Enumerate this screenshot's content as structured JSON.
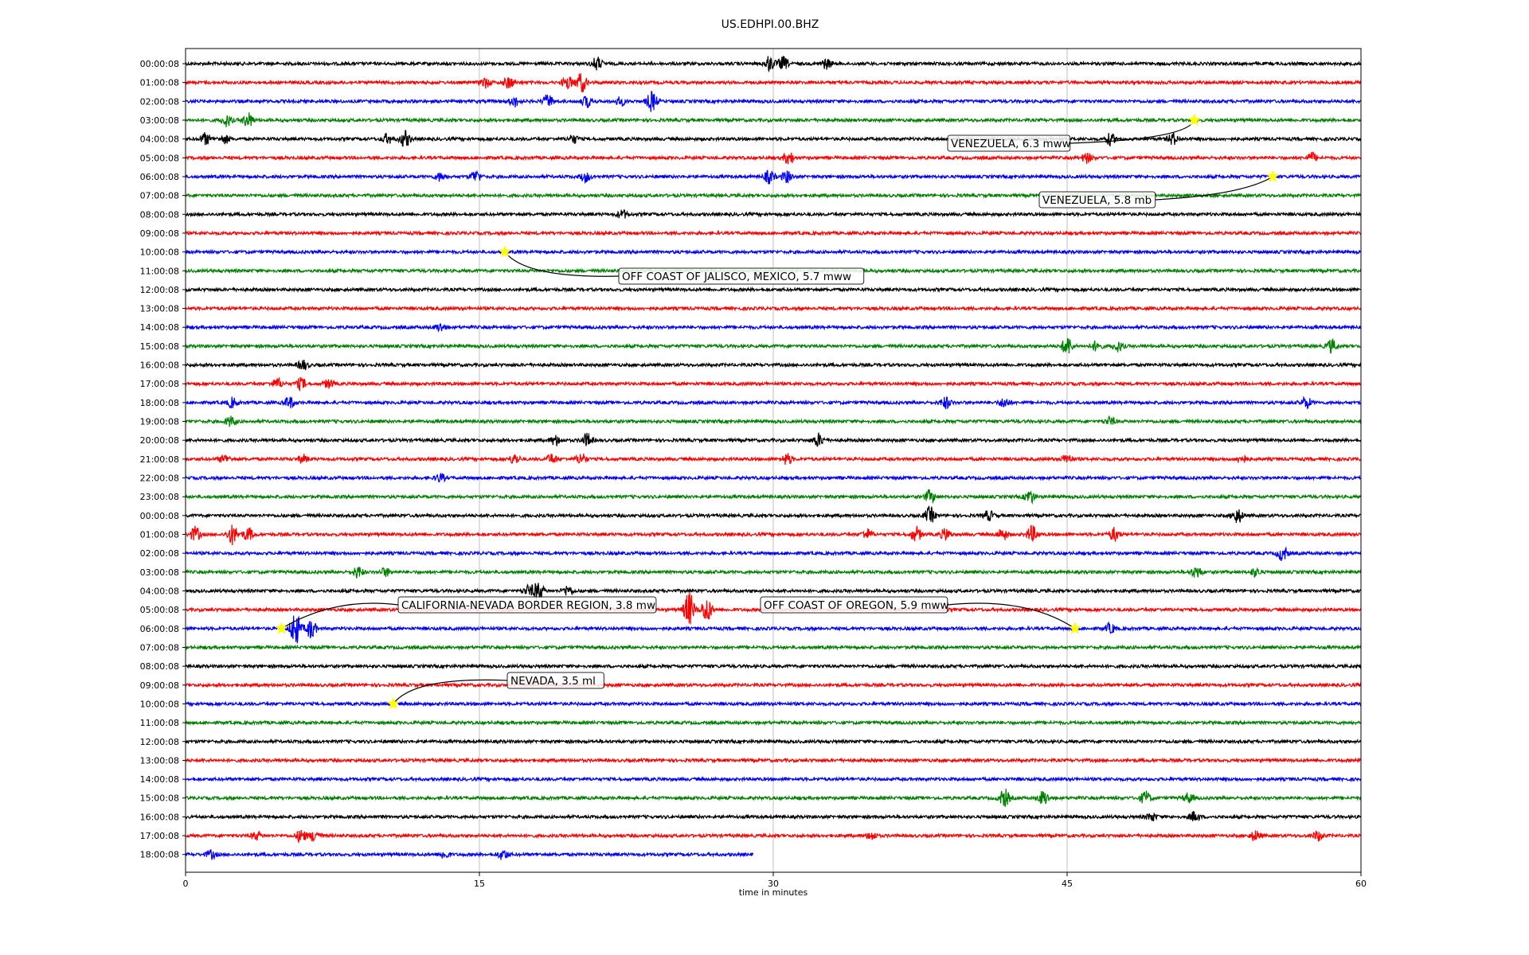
{
  "chart_data": {
    "type": "line",
    "title": "US.EDHPI.00.BHZ",
    "xlabel": "time in minutes",
    "ylabel": "",
    "xlim": [
      0,
      60
    ],
    "xticks": [
      "0",
      "15",
      "30",
      "45",
      "60"
    ],
    "grid": "vertical gridlines at each x tick",
    "trace_colors": [
      "#000000",
      "#ff0000",
      "#0000ff",
      "#008000"
    ],
    "row_labels": [
      "00:00:08",
      "01:00:08",
      "02:00:08",
      "03:00:08",
      "04:00:08",
      "05:00:08",
      "06:00:08",
      "07:00:08",
      "08:00:08",
      "09:00:08",
      "10:00:08",
      "11:00:08",
      "12:00:08",
      "13:00:08",
      "14:00:08",
      "15:00:08",
      "16:00:08",
      "17:00:08",
      "18:00:08",
      "19:00:08",
      "20:00:08",
      "21:00:08",
      "22:00:08",
      "23:00:08",
      "00:00:08",
      "01:00:08",
      "02:00:08",
      "03:00:08",
      "04:00:08",
      "05:00:08",
      "06:00:08",
      "07:00:08",
      "08:00:08",
      "09:00:08",
      "10:00:08",
      "11:00:08",
      "12:00:08",
      "13:00:08",
      "14:00:08",
      "15:00:08",
      "16:00:08",
      "17:00:08",
      "18:00:08"
    ],
    "last_row_end_minute": 29,
    "bursts": [
      {
        "row": 0,
        "minute": 21.0,
        "amp": 8
      },
      {
        "row": 0,
        "minute": 29.8,
        "amp": 9
      },
      {
        "row": 0,
        "minute": 30.5,
        "amp": 8
      },
      {
        "row": 0,
        "minute": 32.7,
        "amp": 6
      },
      {
        "row": 1,
        "minute": 15.3,
        "amp": 6
      },
      {
        "row": 1,
        "minute": 16.5,
        "amp": 7
      },
      {
        "row": 1,
        "minute": 19.5,
        "amp": 8
      },
      {
        "row": 1,
        "minute": 20.2,
        "amp": 12
      },
      {
        "row": 2,
        "minute": 16.8,
        "amp": 6
      },
      {
        "row": 2,
        "minute": 18.5,
        "amp": 8
      },
      {
        "row": 2,
        "minute": 20.5,
        "amp": 7
      },
      {
        "row": 2,
        "minute": 22.2,
        "amp": 5
      },
      {
        "row": 2,
        "minute": 23.8,
        "amp": 12
      },
      {
        "row": 3,
        "minute": 2.1,
        "amp": 7
      },
      {
        "row": 3,
        "minute": 3.2,
        "amp": 9
      },
      {
        "row": 4,
        "minute": 1.0,
        "amp": 7
      },
      {
        "row": 4,
        "minute": 2.0,
        "amp": 5
      },
      {
        "row": 4,
        "minute": 10.3,
        "amp": 6
      },
      {
        "row": 4,
        "minute": 11.2,
        "amp": 10
      },
      {
        "row": 4,
        "minute": 19.8,
        "amp": 5
      },
      {
        "row": 4,
        "minute": 47.2,
        "amp": 7
      },
      {
        "row": 4,
        "minute": 50.4,
        "amp": 7
      },
      {
        "row": 5,
        "minute": 30.8,
        "amp": 8
      },
      {
        "row": 5,
        "minute": 46.0,
        "amp": 6
      },
      {
        "row": 5,
        "minute": 57.5,
        "amp": 6
      },
      {
        "row": 6,
        "minute": 13.0,
        "amp": 5
      },
      {
        "row": 6,
        "minute": 14.8,
        "amp": 7
      },
      {
        "row": 6,
        "minute": 20.4,
        "amp": 6
      },
      {
        "row": 6,
        "minute": 29.8,
        "amp": 8
      },
      {
        "row": 6,
        "minute": 30.7,
        "amp": 7
      },
      {
        "row": 8,
        "minute": 22.3,
        "amp": 5
      },
      {
        "row": 14,
        "minute": 13.0,
        "amp": 5
      },
      {
        "row": 15,
        "minute": 45.0,
        "amp": 12
      },
      {
        "row": 15,
        "minute": 46.5,
        "amp": 6
      },
      {
        "row": 15,
        "minute": 47.6,
        "amp": 6
      },
      {
        "row": 15,
        "minute": 58.5,
        "amp": 8
      },
      {
        "row": 16,
        "minute": 6.0,
        "amp": 6
      },
      {
        "row": 17,
        "minute": 4.7,
        "amp": 6
      },
      {
        "row": 17,
        "minute": 5.9,
        "amp": 7
      },
      {
        "row": 17,
        "minute": 7.3,
        "amp": 5
      },
      {
        "row": 18,
        "minute": 2.4,
        "amp": 6
      },
      {
        "row": 18,
        "minute": 5.3,
        "amp": 7
      },
      {
        "row": 18,
        "minute": 38.8,
        "amp": 7
      },
      {
        "row": 18,
        "minute": 41.8,
        "amp": 6
      },
      {
        "row": 18,
        "minute": 57.2,
        "amp": 7
      },
      {
        "row": 19,
        "minute": 2.3,
        "amp": 6
      },
      {
        "row": 19,
        "minute": 47.2,
        "amp": 5
      },
      {
        "row": 20,
        "minute": 18.9,
        "amp": 6
      },
      {
        "row": 20,
        "minute": 20.5,
        "amp": 8
      },
      {
        "row": 20,
        "minute": 32.3,
        "amp": 8
      },
      {
        "row": 21,
        "minute": 2.0,
        "amp": 5
      },
      {
        "row": 21,
        "minute": 6.0,
        "amp": 5
      },
      {
        "row": 21,
        "minute": 16.8,
        "amp": 6
      },
      {
        "row": 21,
        "minute": 18.7,
        "amp": 6
      },
      {
        "row": 21,
        "minute": 20.2,
        "amp": 7
      },
      {
        "row": 21,
        "minute": 30.7,
        "amp": 7
      },
      {
        "row": 21,
        "minute": 45.0,
        "amp": 6
      },
      {
        "row": 21,
        "minute": 53.9,
        "amp": 5
      },
      {
        "row": 22,
        "minute": 13.0,
        "amp": 5
      },
      {
        "row": 23,
        "minute": 38.0,
        "amp": 8
      },
      {
        "row": 23,
        "minute": 43.1,
        "amp": 8
      },
      {
        "row": 24,
        "minute": 38.0,
        "amp": 10
      },
      {
        "row": 24,
        "minute": 41.0,
        "amp": 6
      },
      {
        "row": 24,
        "minute": 53.7,
        "amp": 9
      },
      {
        "row": 25,
        "minute": 0.5,
        "amp": 9
      },
      {
        "row": 25,
        "minute": 2.4,
        "amp": 12
      },
      {
        "row": 25,
        "minute": 3.2,
        "amp": 8
      },
      {
        "row": 25,
        "minute": 34.8,
        "amp": 6
      },
      {
        "row": 25,
        "minute": 37.3,
        "amp": 9
      },
      {
        "row": 25,
        "minute": 38.8,
        "amp": 7
      },
      {
        "row": 25,
        "minute": 41.7,
        "amp": 7
      },
      {
        "row": 25,
        "minute": 43.2,
        "amp": 10
      },
      {
        "row": 25,
        "minute": 47.4,
        "amp": 8
      },
      {
        "row": 26,
        "minute": 56.0,
        "amp": 9
      },
      {
        "row": 27,
        "minute": 8.8,
        "amp": 7
      },
      {
        "row": 27,
        "minute": 10.2,
        "amp": 5
      },
      {
        "row": 27,
        "minute": 51.6,
        "amp": 7
      },
      {
        "row": 27,
        "minute": 54.6,
        "amp": 5
      },
      {
        "row": 28,
        "minute": 17.5,
        "amp": 6
      },
      {
        "row": 28,
        "minute": 18.0,
        "amp": 12
      },
      {
        "row": 28,
        "minute": 19.5,
        "amp": 6
      },
      {
        "row": 29,
        "minute": 25.7,
        "amp": 22
      },
      {
        "row": 29,
        "minute": 26.6,
        "amp": 16
      },
      {
        "row": 30,
        "minute": 5.6,
        "amp": 22
      },
      {
        "row": 30,
        "minute": 6.4,
        "amp": 12
      },
      {
        "row": 30,
        "minute": 47.2,
        "amp": 6
      },
      {
        "row": 39,
        "minute": 41.8,
        "amp": 11
      },
      {
        "row": 39,
        "minute": 43.8,
        "amp": 9
      },
      {
        "row": 39,
        "minute": 49.0,
        "amp": 8
      },
      {
        "row": 39,
        "minute": 51.2,
        "amp": 6
      },
      {
        "row": 40,
        "minute": 49.3,
        "amp": 5
      },
      {
        "row": 40,
        "minute": 51.5,
        "amp": 6
      },
      {
        "row": 41,
        "minute": 3.6,
        "amp": 5
      },
      {
        "row": 41,
        "minute": 5.9,
        "amp": 8
      },
      {
        "row": 41,
        "minute": 6.6,
        "amp": 7
      },
      {
        "row": 41,
        "minute": 35.0,
        "amp": 5
      },
      {
        "row": 41,
        "minute": 54.6,
        "amp": 6
      },
      {
        "row": 41,
        "minute": 57.8,
        "amp": 6
      },
      {
        "row": 42,
        "minute": 1.3,
        "amp": 5
      },
      {
        "row": 42,
        "minute": 13.2,
        "amp": 5
      },
      {
        "row": 42,
        "minute": 16.2,
        "amp": 6
      }
    ],
    "annotations": [
      {
        "label": "VENEZUELA, 6.3 mww",
        "row": 3,
        "minute": 51.5
      },
      {
        "label": "VENEZUELA, 5.8 mb",
        "row": 6,
        "minute": 55.5
      },
      {
        "label": "OFF COAST OF JALISCO, MEXICO, 5.7 mww",
        "row": 10,
        "minute": 16.3
      },
      {
        "label": "CALIFORNIA-NEVADA BORDER REGION, 3.8 mw",
        "row": 30,
        "minute": 4.9
      },
      {
        "label": "OFF COAST OF OREGON, 5.9 mww",
        "row": 30,
        "minute": 45.4
      },
      {
        "label": "NEVADA, 3.5 ml",
        "row": 34,
        "minute": 10.6
      }
    ]
  }
}
